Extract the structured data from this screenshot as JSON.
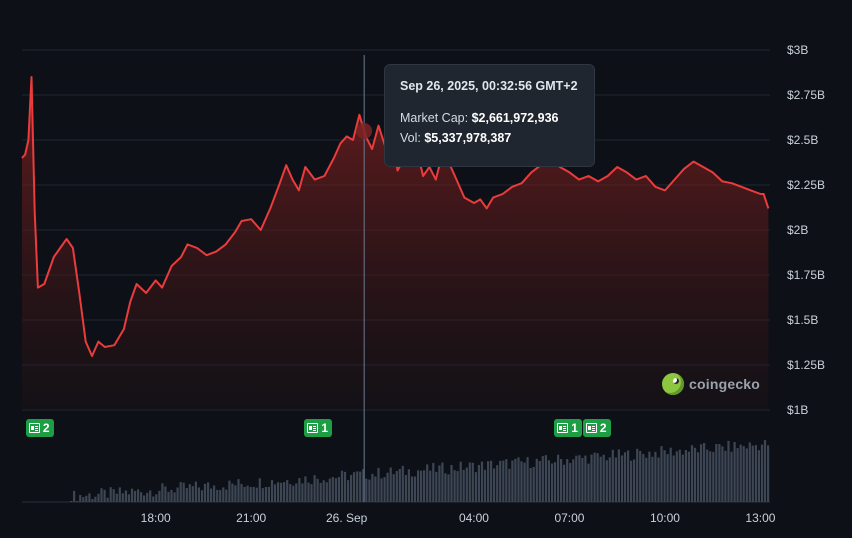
{
  "chart_data": {
    "type": "line",
    "title": "",
    "y_ticks": [
      "$3B",
      "$2.75B",
      "$2.5B",
      "$2.25B",
      "$2B",
      "$1.75B",
      "$1.5B",
      "$1.25B",
      "$1B"
    ],
    "y_tick_values": [
      3.0,
      2.75,
      2.5,
      2.25,
      2.0,
      1.75,
      1.5,
      1.25,
      1.0
    ],
    "ylim": [
      1.0,
      3.0
    ],
    "x_ticks": [
      "18:00",
      "21:00",
      "26. Sep",
      "04:00",
      "07:00",
      "10:00",
      "13:00"
    ],
    "x_tick_hours": [
      18,
      21,
      24,
      28,
      31,
      34,
      37
    ],
    "xlim_hours": [
      13.8,
      37.3
    ],
    "line_color": "#ea3c3c",
    "grid": true,
    "series": [
      {
        "values_billion": [
          [
            13.8,
            2.4
          ],
          [
            13.9,
            2.42
          ],
          [
            14.0,
            2.5
          ],
          [
            14.1,
            2.85
          ],
          [
            14.2,
            2.1
          ],
          [
            14.3,
            1.68
          ],
          [
            14.5,
            1.7
          ],
          [
            14.8,
            1.85
          ],
          [
            15.0,
            1.9
          ],
          [
            15.2,
            1.95
          ],
          [
            15.4,
            1.9
          ],
          [
            15.6,
            1.65
          ],
          [
            15.8,
            1.38
          ],
          [
            16.0,
            1.3
          ],
          [
            16.2,
            1.38
          ],
          [
            16.4,
            1.35
          ],
          [
            16.7,
            1.36
          ],
          [
            17.0,
            1.45
          ],
          [
            17.2,
            1.6
          ],
          [
            17.4,
            1.7
          ],
          [
            17.7,
            1.65
          ],
          [
            18.0,
            1.72
          ],
          [
            18.2,
            1.68
          ],
          [
            18.5,
            1.8
          ],
          [
            18.8,
            1.85
          ],
          [
            19.0,
            1.92
          ],
          [
            19.3,
            1.9
          ],
          [
            19.6,
            1.86
          ],
          [
            19.9,
            1.88
          ],
          [
            20.2,
            1.92
          ],
          [
            20.5,
            1.99
          ],
          [
            20.7,
            2.05
          ],
          [
            21.0,
            2.06
          ],
          [
            21.3,
            2.0
          ],
          [
            21.6,
            2.12
          ],
          [
            21.9,
            2.26
          ],
          [
            22.1,
            2.36
          ],
          [
            22.3,
            2.28
          ],
          [
            22.5,
            2.22
          ],
          [
            22.7,
            2.35
          ],
          [
            23.0,
            2.28
          ],
          [
            23.3,
            2.3
          ],
          [
            23.6,
            2.4
          ],
          [
            23.8,
            2.48
          ],
          [
            24.0,
            2.52
          ],
          [
            24.2,
            2.5
          ],
          [
            24.4,
            2.64
          ],
          [
            24.6,
            2.52
          ],
          [
            24.8,
            2.45
          ],
          [
            25.0,
            2.58
          ],
          [
            25.2,
            2.47
          ],
          [
            25.4,
            2.5
          ],
          [
            25.6,
            2.33
          ],
          [
            25.8,
            2.4
          ],
          [
            26.0,
            2.38
          ],
          [
            26.2,
            2.45
          ],
          [
            26.4,
            2.3
          ],
          [
            26.6,
            2.35
          ],
          [
            26.8,
            2.28
          ],
          [
            27.0,
            2.42
          ],
          [
            27.2,
            2.38
          ],
          [
            27.4,
            2.3
          ],
          [
            27.7,
            2.18
          ],
          [
            28.0,
            2.15
          ],
          [
            28.2,
            2.17
          ],
          [
            28.4,
            2.12
          ],
          [
            28.6,
            2.18
          ],
          [
            28.9,
            2.2
          ],
          [
            29.2,
            2.24
          ],
          [
            29.5,
            2.26
          ],
          [
            29.8,
            2.32
          ],
          [
            30.1,
            2.36
          ],
          [
            30.4,
            2.42
          ],
          [
            30.7,
            2.35
          ],
          [
            31.0,
            2.32
          ],
          [
            31.3,
            2.28
          ],
          [
            31.6,
            2.3
          ],
          [
            31.9,
            2.27
          ],
          [
            32.2,
            2.3
          ],
          [
            32.5,
            2.35
          ],
          [
            32.8,
            2.32
          ],
          [
            33.1,
            2.28
          ],
          [
            33.4,
            2.3
          ],
          [
            33.7,
            2.24
          ],
          [
            34.0,
            2.22
          ],
          [
            34.3,
            2.28
          ],
          [
            34.6,
            2.34
          ],
          [
            34.9,
            2.38
          ],
          [
            35.2,
            2.35
          ],
          [
            35.5,
            2.32
          ],
          [
            35.8,
            2.27
          ],
          [
            36.1,
            2.26
          ],
          [
            36.4,
            2.24
          ],
          [
            36.7,
            2.22
          ],
          [
            37.0,
            2.2
          ],
          [
            37.1,
            2.2
          ],
          [
            37.25,
            2.12
          ]
        ]
      }
    ],
    "hover_hour": 24.55,
    "tooltip": {
      "timestamp": "Sep 26, 2025, 00:32:56 GMT+2",
      "market_cap_label": "Market Cap:",
      "market_cap_value": "$2,661,972,936",
      "vol_label": "Vol:",
      "vol_value": "$5,337,978,387"
    },
    "news_markers": [
      {
        "hour": 14.3,
        "count": "2"
      },
      {
        "hour": 23.05,
        "count": "1"
      },
      {
        "hour": 30.9,
        "count": "1"
      },
      {
        "hour": 31.8,
        "count": "2"
      }
    ],
    "volume_bar_color": "#3d4654"
  },
  "brand": {
    "name": "coingecko",
    "logo_icon": "gecko-logo-icon"
  }
}
